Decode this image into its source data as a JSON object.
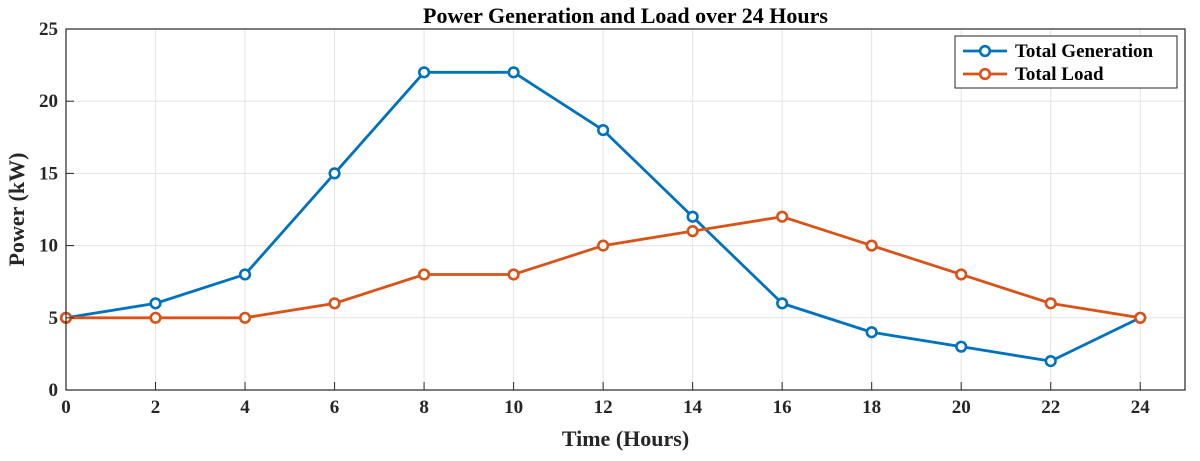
{
  "chart_data": {
    "type": "line",
    "title": "Power Generation and Load over 24 Hours",
    "xlabel": "Time (Hours)",
    "ylabel": "Power (kW)",
    "x": [
      0,
      2,
      4,
      6,
      8,
      10,
      12,
      14,
      16,
      18,
      20,
      22,
      24
    ],
    "xlim": [
      0,
      25
    ],
    "ylim": [
      0,
      25
    ],
    "xticks": [
      "0",
      "2",
      "4",
      "6",
      "8",
      "10",
      "12",
      "14",
      "16",
      "18",
      "20",
      "22",
      "24"
    ],
    "yticks": [
      "0",
      "5",
      "10",
      "15",
      "20",
      "25"
    ],
    "grid": true,
    "legend_position": "top-right",
    "series": [
      {
        "name": "Total Generation",
        "color": "#0072BD",
        "marker": "circle",
        "values": [
          5,
          6,
          8,
          15,
          22,
          22,
          18,
          12,
          6,
          4,
          3,
          2,
          5
        ]
      },
      {
        "name": "Total Load",
        "color": "#D95319",
        "marker": "circle",
        "values": [
          5,
          5,
          5,
          6,
          8,
          8,
          10,
          11,
          12,
          10,
          8,
          6,
          5
        ]
      }
    ]
  }
}
